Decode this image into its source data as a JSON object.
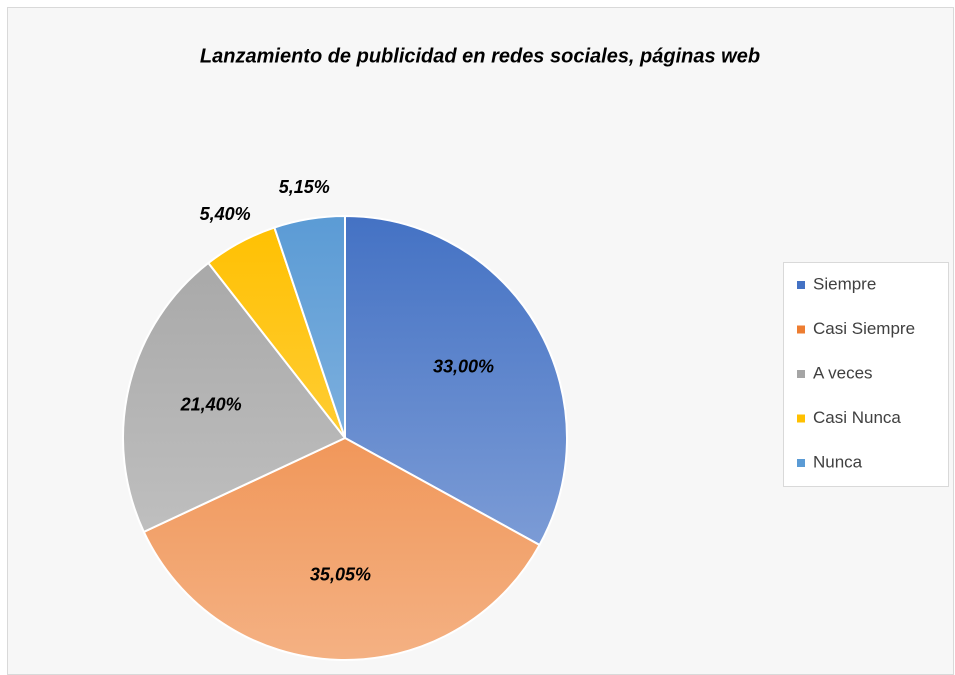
{
  "chart_data": {
    "type": "pie",
    "title": "Lanzamiento de publicidad en redes sociales, páginas web",
    "categories": [
      "Siempre",
      "Casi Siempre",
      "A veces",
      "Casi Nunca",
      "Nunca"
    ],
    "values": [
      33.0,
      35.05,
      21.4,
      5.4,
      5.15
    ],
    "value_labels": [
      "33,00%",
      "35,05%",
      "21,40%",
      "5,40%",
      "5,15%"
    ],
    "colors": [
      "#4472c4",
      "#ed7d31",
      "#a5a5a5",
      "#ffc000",
      "#5b9bd5"
    ],
    "legend": "right"
  }
}
